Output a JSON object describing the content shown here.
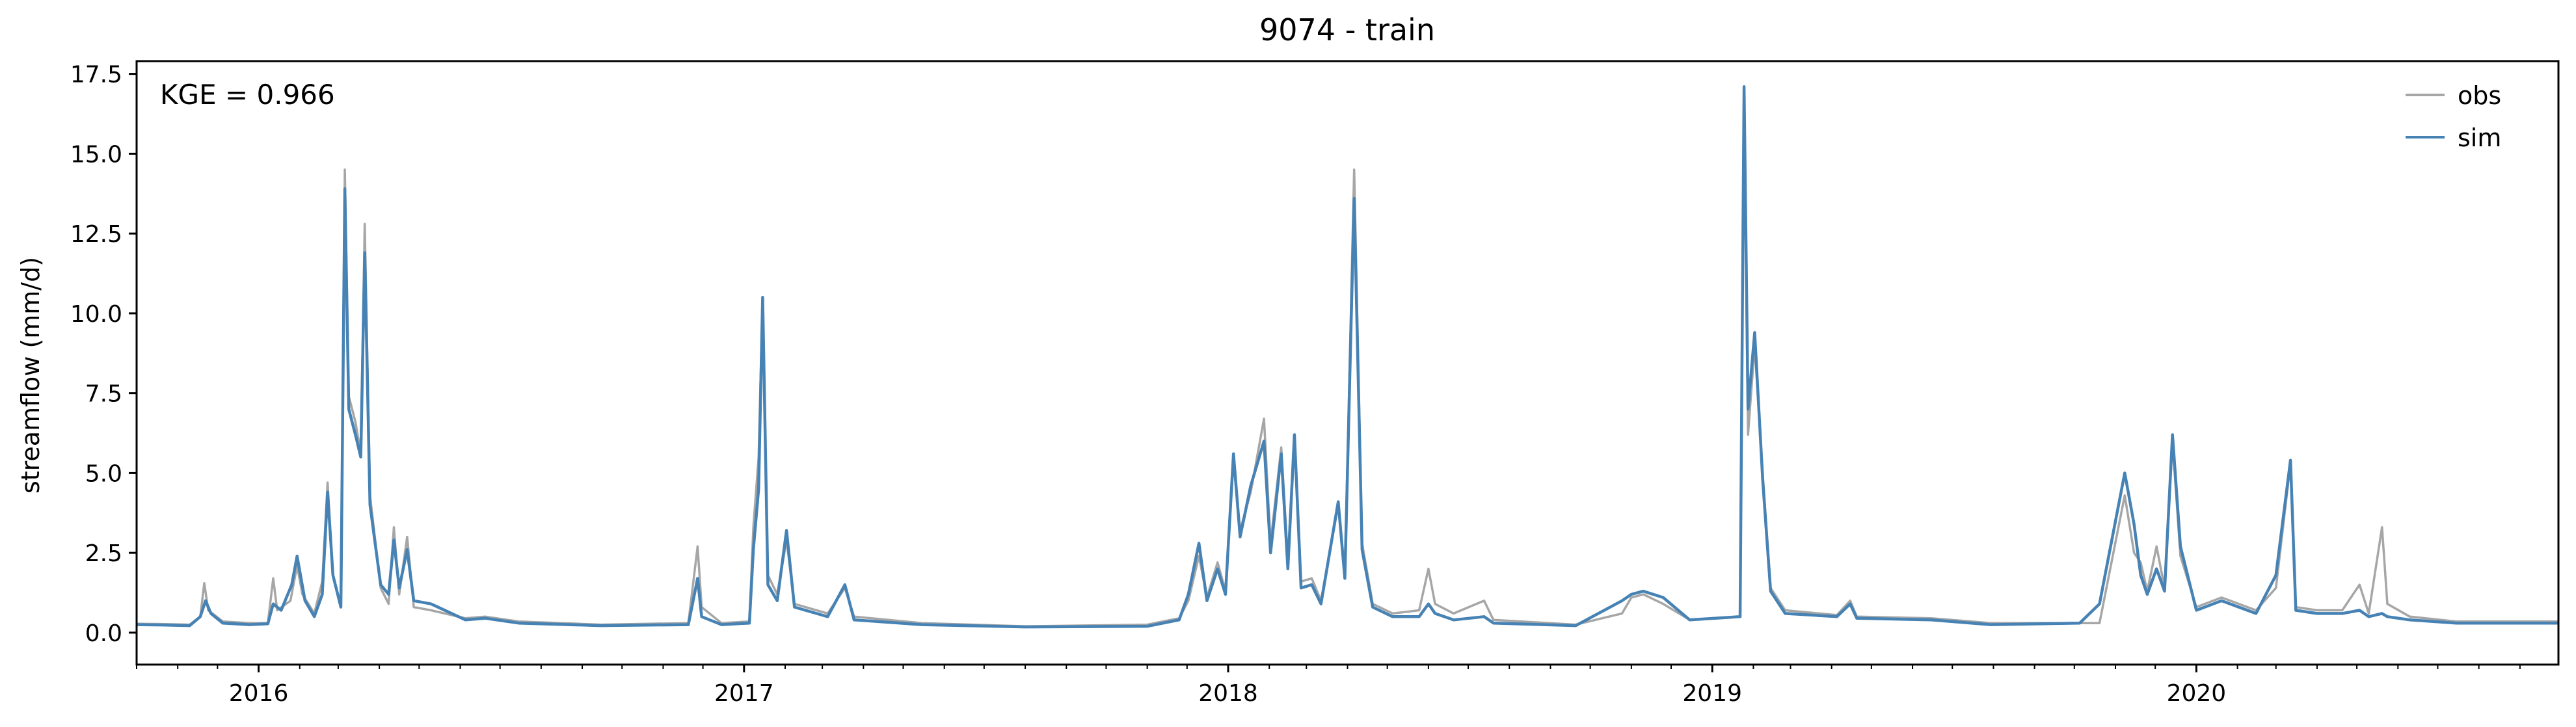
{
  "chart_data": {
    "type": "line",
    "title": "9074 - train",
    "xlabel": "",
    "ylabel": "streamflow (mm/d)",
    "annotation": "KGE = 0.966",
    "xlim": [
      "2015-10-01",
      "2020-09-30"
    ],
    "ylim": [
      -1.0,
      17.9
    ],
    "x_ticks": [
      "2016",
      "2017",
      "2018",
      "2019",
      "2020"
    ],
    "y_ticks": [
      "0.0",
      "2.5",
      "5.0",
      "7.5",
      "10.0",
      "12.5",
      "15.0",
      "17.5"
    ],
    "grid": false,
    "legend_position": "top-right",
    "series": [
      {
        "name": "obs",
        "color": "#a6a6a6",
        "points": [
          [
            "2015-10-01",
            0.28
          ],
          [
            "2015-10-20",
            0.27
          ],
          [
            "2015-11-10",
            0.25
          ],
          [
            "2015-11-18",
            0.5
          ],
          [
            "2015-11-21",
            1.55
          ],
          [
            "2015-11-24",
            0.7
          ],
          [
            "2015-12-05",
            0.35
          ],
          [
            "2015-12-25",
            0.3
          ],
          [
            "2016-01-08",
            0.3
          ],
          [
            "2016-01-12",
            1.7
          ],
          [
            "2016-01-15",
            0.7
          ],
          [
            "2016-01-25",
            1.0
          ],
          [
            "2016-01-30",
            2.1
          ],
          [
            "2016-02-03",
            1.2
          ],
          [
            "2016-02-12",
            0.6
          ],
          [
            "2016-02-18",
            1.6
          ],
          [
            "2016-02-22",
            4.7
          ],
          [
            "2016-02-26",
            1.8
          ],
          [
            "2016-03-03",
            0.8
          ],
          [
            "2016-03-06",
            14.5
          ],
          [
            "2016-03-09",
            7.4
          ],
          [
            "2016-03-14",
            6.6
          ],
          [
            "2016-03-18",
            5.6
          ],
          [
            "2016-03-21",
            12.8
          ],
          [
            "2016-03-25",
            4.3
          ],
          [
            "2016-04-02",
            1.4
          ],
          [
            "2016-04-08",
            0.9
          ],
          [
            "2016-04-12",
            3.3
          ],
          [
            "2016-04-16",
            1.2
          ],
          [
            "2016-04-22",
            3.0
          ],
          [
            "2016-04-27",
            0.8
          ],
          [
            "2016-05-10",
            0.7
          ],
          [
            "2016-06-05",
            0.45
          ],
          [
            "2016-06-20",
            0.5
          ],
          [
            "2016-07-15",
            0.35
          ],
          [
            "2016-09-15",
            0.25
          ],
          [
            "2016-11-20",
            0.3
          ],
          [
            "2016-11-27",
            2.7
          ],
          [
            "2016-11-30",
            0.8
          ],
          [
            "2016-12-15",
            0.3
          ],
          [
            "2017-01-05",
            0.35
          ],
          [
            "2017-01-08",
            3.3
          ],
          [
            "2017-01-12",
            5.5
          ],
          [
            "2017-01-15",
            10.4
          ],
          [
            "2017-01-19",
            1.8
          ],
          [
            "2017-01-26",
            1.2
          ],
          [
            "2017-02-02",
            2.9
          ],
          [
            "2017-02-08",
            0.9
          ],
          [
            "2017-03-05",
            0.6
          ],
          [
            "2017-03-18",
            1.4
          ],
          [
            "2017-03-25",
            0.5
          ],
          [
            "2017-05-15",
            0.3
          ],
          [
            "2017-08-01",
            0.2
          ],
          [
            "2017-11-01",
            0.25
          ],
          [
            "2017-11-25",
            0.45
          ],
          [
            "2017-12-02",
            1.0
          ],
          [
            "2017-12-10",
            2.4
          ],
          [
            "2017-12-16",
            1.1
          ],
          [
            "2017-12-24",
            2.2
          ],
          [
            "2017-12-30",
            1.3
          ],
          [
            "2018-01-05",
            5.4
          ],
          [
            "2018-01-10",
            3.2
          ],
          [
            "2018-01-18",
            4.4
          ],
          [
            "2018-01-28",
            6.7
          ],
          [
            "2018-02-02",
            2.8
          ],
          [
            "2018-02-10",
            5.8
          ],
          [
            "2018-02-15",
            2.3
          ],
          [
            "2018-02-20",
            6.0
          ],
          [
            "2018-02-25",
            1.6
          ],
          [
            "2018-03-05",
            1.7
          ],
          [
            "2018-03-12",
            1.0
          ],
          [
            "2018-03-25",
            4.0
          ],
          [
            "2018-03-30",
            1.8
          ],
          [
            "2018-04-06",
            14.5
          ],
          [
            "2018-04-12",
            2.8
          ],
          [
            "2018-04-20",
            0.9
          ],
          [
            "2018-05-05",
            0.6
          ],
          [
            "2018-05-25",
            0.7
          ],
          [
            "2018-06-01",
            2.0
          ],
          [
            "2018-06-06",
            0.9
          ],
          [
            "2018-06-20",
            0.6
          ],
          [
            "2018-07-13",
            1.0
          ],
          [
            "2018-07-20",
            0.4
          ],
          [
            "2018-09-20",
            0.25
          ],
          [
            "2018-10-25",
            0.6
          ],
          [
            "2018-11-01",
            1.1
          ],
          [
            "2018-11-10",
            1.2
          ],
          [
            "2018-11-25",
            0.9
          ],
          [
            "2018-12-15",
            0.4
          ],
          [
            "2019-01-22",
            0.5
          ],
          [
            "2019-01-25",
            17.0
          ],
          [
            "2019-01-28",
            6.2
          ],
          [
            "2019-02-02",
            9.0
          ],
          [
            "2019-02-08",
            5.0
          ],
          [
            "2019-02-14",
            1.4
          ],
          [
            "2019-02-25",
            0.7
          ],
          [
            "2019-04-05",
            0.55
          ],
          [
            "2019-04-15",
            1.0
          ],
          [
            "2019-04-20",
            0.5
          ],
          [
            "2019-06-15",
            0.45
          ],
          [
            "2019-07-30",
            0.3
          ],
          [
            "2019-10-05",
            0.3
          ],
          [
            "2019-10-20",
            0.3
          ],
          [
            "2019-11-08",
            4.3
          ],
          [
            "2019-11-15",
            2.5
          ],
          [
            "2019-11-20",
            2.2
          ],
          [
            "2019-11-25",
            1.3
          ],
          [
            "2019-12-02",
            2.7
          ],
          [
            "2019-12-08",
            1.4
          ],
          [
            "2019-12-14",
            6.0
          ],
          [
            "2019-12-20",
            2.4
          ],
          [
            "2020-01-01",
            0.8
          ],
          [
            "2020-01-20",
            1.1
          ],
          [
            "2020-02-15",
            0.7
          ],
          [
            "2020-03-01",
            1.4
          ],
          [
            "2020-03-12",
            5.3
          ],
          [
            "2020-03-16",
            0.8
          ],
          [
            "2020-04-01",
            0.7
          ],
          [
            "2020-04-20",
            0.7
          ],
          [
            "2020-05-03",
            1.5
          ],
          [
            "2020-05-10",
            0.6
          ],
          [
            "2020-05-20",
            3.3
          ],
          [
            "2020-05-24",
            0.9
          ],
          [
            "2020-06-10",
            0.5
          ],
          [
            "2020-07-15",
            0.35
          ],
          [
            "2020-09-30",
            0.35
          ]
        ]
      },
      {
        "name": "sim",
        "color": "#4682b4",
        "points": [
          [
            "2015-10-01",
            0.25
          ],
          [
            "2015-10-20",
            0.24
          ],
          [
            "2015-11-10",
            0.22
          ],
          [
            "2015-11-18",
            0.5
          ],
          [
            "2015-11-22",
            1.0
          ],
          [
            "2015-11-26",
            0.6
          ],
          [
            "2015-12-05",
            0.3
          ],
          [
            "2015-12-25",
            0.25
          ],
          [
            "2016-01-08",
            0.28
          ],
          [
            "2016-01-12",
            0.9
          ],
          [
            "2016-01-18",
            0.7
          ],
          [
            "2016-01-26",
            1.5
          ],
          [
            "2016-01-30",
            2.4
          ],
          [
            "2016-02-05",
            1.0
          ],
          [
            "2016-02-12",
            0.5
          ],
          [
            "2016-02-18",
            1.2
          ],
          [
            "2016-02-22",
            4.4
          ],
          [
            "2016-02-26",
            1.8
          ],
          [
            "2016-03-03",
            0.8
          ],
          [
            "2016-03-06",
            13.9
          ],
          [
            "2016-03-09",
            7.0
          ],
          [
            "2016-03-14",
            6.2
          ],
          [
            "2016-03-18",
            5.5
          ],
          [
            "2016-03-21",
            11.9
          ],
          [
            "2016-03-25",
            4.0
          ],
          [
            "2016-04-02",
            1.5
          ],
          [
            "2016-04-08",
            1.2
          ],
          [
            "2016-04-12",
            2.9
          ],
          [
            "2016-04-16",
            1.4
          ],
          [
            "2016-04-22",
            2.6
          ],
          [
            "2016-04-27",
            1.0
          ],
          [
            "2016-05-10",
            0.9
          ],
          [
            "2016-06-05",
            0.4
          ],
          [
            "2016-06-20",
            0.45
          ],
          [
            "2016-07-15",
            0.3
          ],
          [
            "2016-09-15",
            0.22
          ],
          [
            "2016-11-20",
            0.25
          ],
          [
            "2016-11-27",
            1.7
          ],
          [
            "2016-11-30",
            0.5
          ],
          [
            "2016-12-15",
            0.25
          ],
          [
            "2017-01-05",
            0.3
          ],
          [
            "2017-01-08",
            2.6
          ],
          [
            "2017-01-12",
            4.5
          ],
          [
            "2017-01-15",
            10.5
          ],
          [
            "2017-01-19",
            1.5
          ],
          [
            "2017-01-26",
            1.0
          ],
          [
            "2017-02-02",
            3.2
          ],
          [
            "2017-02-08",
            0.8
          ],
          [
            "2017-03-05",
            0.5
          ],
          [
            "2017-03-18",
            1.5
          ],
          [
            "2017-03-25",
            0.4
          ],
          [
            "2017-05-15",
            0.25
          ],
          [
            "2017-08-01",
            0.18
          ],
          [
            "2017-11-01",
            0.2
          ],
          [
            "2017-11-25",
            0.4
          ],
          [
            "2017-12-02",
            1.2
          ],
          [
            "2017-12-10",
            2.8
          ],
          [
            "2017-12-16",
            1.0
          ],
          [
            "2017-12-24",
            2.0
          ],
          [
            "2017-12-30",
            1.2
          ],
          [
            "2018-01-05",
            5.6
          ],
          [
            "2018-01-10",
            3.0
          ],
          [
            "2018-01-18",
            4.6
          ],
          [
            "2018-01-28",
            6.0
          ],
          [
            "2018-02-02",
            2.5
          ],
          [
            "2018-02-10",
            5.6
          ],
          [
            "2018-02-15",
            2.0
          ],
          [
            "2018-02-20",
            6.2
          ],
          [
            "2018-02-25",
            1.4
          ],
          [
            "2018-03-05",
            1.5
          ],
          [
            "2018-03-12",
            0.9
          ],
          [
            "2018-03-25",
            4.1
          ],
          [
            "2018-03-30",
            1.7
          ],
          [
            "2018-04-06",
            13.6
          ],
          [
            "2018-04-12",
            2.6
          ],
          [
            "2018-04-20",
            0.8
          ],
          [
            "2018-05-05",
            0.5
          ],
          [
            "2018-05-25",
            0.5
          ],
          [
            "2018-06-01",
            0.9
          ],
          [
            "2018-06-06",
            0.6
          ],
          [
            "2018-06-20",
            0.4
          ],
          [
            "2018-07-13",
            0.5
          ],
          [
            "2018-07-20",
            0.3
          ],
          [
            "2018-09-20",
            0.22
          ],
          [
            "2018-10-25",
            1.0
          ],
          [
            "2018-11-01",
            1.2
          ],
          [
            "2018-11-10",
            1.3
          ],
          [
            "2018-11-25",
            1.1
          ],
          [
            "2018-12-15",
            0.4
          ],
          [
            "2019-01-22",
            0.5
          ],
          [
            "2019-01-25",
            17.1
          ],
          [
            "2019-01-28",
            7.0
          ],
          [
            "2019-02-02",
            9.4
          ],
          [
            "2019-02-08",
            4.8
          ],
          [
            "2019-02-14",
            1.3
          ],
          [
            "2019-02-25",
            0.6
          ],
          [
            "2019-04-05",
            0.5
          ],
          [
            "2019-04-15",
            0.9
          ],
          [
            "2019-04-20",
            0.45
          ],
          [
            "2019-06-15",
            0.4
          ],
          [
            "2019-07-30",
            0.25
          ],
          [
            "2019-10-05",
            0.3
          ],
          [
            "2019-10-20",
            0.9
          ],
          [
            "2019-11-08",
            5.0
          ],
          [
            "2019-11-15",
            3.4
          ],
          [
            "2019-11-20",
            1.8
          ],
          [
            "2019-11-25",
            1.2
          ],
          [
            "2019-12-02",
            2.0
          ],
          [
            "2019-12-08",
            1.3
          ],
          [
            "2019-12-14",
            6.2
          ],
          [
            "2019-12-20",
            2.7
          ],
          [
            "2020-01-01",
            0.7
          ],
          [
            "2020-01-20",
            1.0
          ],
          [
            "2020-02-15",
            0.6
          ],
          [
            "2020-03-01",
            1.8
          ],
          [
            "2020-03-12",
            5.4
          ],
          [
            "2020-03-16",
            0.7
          ],
          [
            "2020-04-01",
            0.6
          ],
          [
            "2020-04-20",
            0.6
          ],
          [
            "2020-05-03",
            0.7
          ],
          [
            "2020-05-10",
            0.5
          ],
          [
            "2020-05-20",
            0.6
          ],
          [
            "2020-05-24",
            0.5
          ],
          [
            "2020-06-10",
            0.4
          ],
          [
            "2020-07-15",
            0.3
          ],
          [
            "2020-09-30",
            0.3
          ]
        ]
      }
    ]
  }
}
